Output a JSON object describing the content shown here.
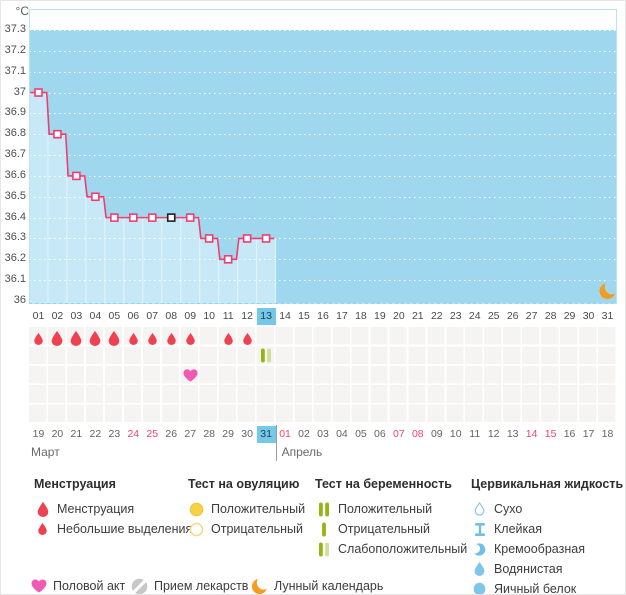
{
  "colors": {
    "chart_bg": "#9fd8ee",
    "chart_column": "#c7e9f7",
    "column_separator": "#e4f4fb",
    "chart_border": "#b9e2f2",
    "grid_dots": "#ffffff",
    "line": "#ed3f6e",
    "special_marker": "#1f1f1f",
    "highlight": "#74c8e8",
    "drop_red": "#ee4151",
    "heart_pink": "#f05ab3",
    "moon_orange": "#f49b20",
    "test_dark_green": "#96b513",
    "test_pale_green": "#cfe09d",
    "ovul_yellow": "#f6d245",
    "ovul_yellow_border": "#e7c33a",
    "ovul_outline": "#f2da7e",
    "cervical_blue": "#7ec5e9",
    "pill_gray": "#c7c7c7",
    "red_date": "#f2436f"
  },
  "chart_data": {
    "type": "line",
    "ylabel": "°C",
    "ylim": [
      36.0,
      37.3
    ],
    "ytick_step": 0.1,
    "yticks": [
      "37.3",
      "37.2",
      "37.1",
      "37",
      "36.9",
      "36.8",
      "36.7",
      "36.6",
      "36.5",
      "36.4",
      "36.3",
      "36.2",
      "36.1",
      "36"
    ],
    "x_categories": [
      "01",
      "02",
      "03",
      "04",
      "05",
      "06",
      "07",
      "08",
      "09",
      "10",
      "11",
      "12",
      "13",
      "14",
      "15",
      "16",
      "17",
      "18",
      "19",
      "20",
      "21",
      "22",
      "23",
      "24",
      "25",
      "26",
      "27",
      "28",
      "29",
      "30",
      "31"
    ],
    "grid": true,
    "series": [
      {
        "name": "basal-temperature",
        "points": [
          {
            "day": 1,
            "value": 37.0
          },
          {
            "day": 2,
            "value": 36.8
          },
          {
            "day": 3,
            "value": 36.6
          },
          {
            "day": 4,
            "value": 36.5
          },
          {
            "day": 5,
            "value": 36.4
          },
          {
            "day": 6,
            "value": 36.4
          },
          {
            "day": 7,
            "value": 36.4
          },
          {
            "day": 8,
            "value": 36.4
          },
          {
            "day": 9,
            "value": 36.4
          },
          {
            "day": 10,
            "value": 36.3
          },
          {
            "day": 11,
            "value": 36.2
          },
          {
            "day": 12,
            "value": 36.3
          },
          {
            "day": 13,
            "value": 36.3
          }
        ]
      }
    ],
    "special_marker_day": 8,
    "moon_day": 31
  },
  "cycle_days": {
    "highlight": "13"
  },
  "markers": {
    "menstruation_heavy_days": [
      2,
      3,
      4,
      5
    ],
    "menstruation_light_days": [
      1,
      6,
      7,
      8,
      9,
      11,
      12
    ],
    "pregnancy_test": {
      "day": 13,
      "result": "Слабоположительный"
    },
    "intercourse_days": [
      9
    ]
  },
  "calendar": {
    "months": [
      {
        "name": "Март",
        "days": [
          "19",
          "20",
          "21",
          "22",
          "23",
          "24",
          "25",
          "26",
          "27",
          "28",
          "29",
          "30",
          "31"
        ],
        "red_days": [
          "24",
          "25"
        ],
        "highlight_day": "31"
      },
      {
        "name": "Апрель",
        "days": [
          "01",
          "02",
          "03",
          "04",
          "05",
          "06",
          "07",
          "08",
          "09",
          "10",
          "11",
          "12",
          "13",
          "14",
          "15",
          "16",
          "17",
          "18"
        ],
        "red_days": [
          "01",
          "07",
          "08",
          "14",
          "15"
        ]
      }
    ]
  },
  "legend": {
    "menstruation": {
      "title": "Менструация",
      "items": [
        {
          "label": "Менструация"
        },
        {
          "label": "Небольшие выделения"
        }
      ]
    },
    "ovulation_test": {
      "title": "Тест на овуляцию",
      "items": [
        {
          "label": "Положительный"
        },
        {
          "label": "Отрицательный"
        }
      ]
    },
    "pregnancy_test": {
      "title": "Тест на беременность",
      "items": [
        {
          "label": "Положительный"
        },
        {
          "label": "Отрицательный"
        },
        {
          "label": "Слабоположительный"
        }
      ]
    },
    "cervical_fluid": {
      "title": "Цервикальная жидкость",
      "items": [
        {
          "label": "Сухо"
        },
        {
          "label": "Клейкая"
        },
        {
          "label": "Кремообразная"
        },
        {
          "label": "Водянистая"
        },
        {
          "label": "Яичный белок"
        }
      ]
    },
    "extras": [
      {
        "label": "Половой акт"
      },
      {
        "label": "Прием лекарств"
      },
      {
        "label": "Лунный календарь"
      }
    ]
  }
}
